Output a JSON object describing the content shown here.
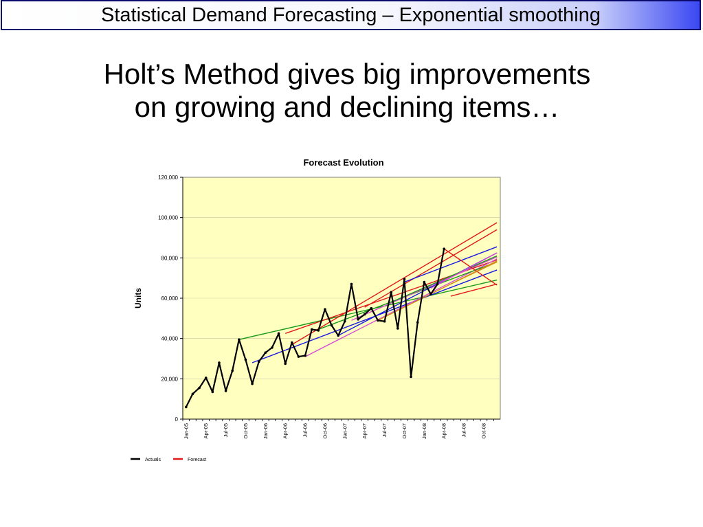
{
  "header": {
    "title": "Statistical Demand Forecasting – Exponential smoothing"
  },
  "headline": {
    "line1": "Holt’s Method gives big improvements",
    "line2": "on growing and declining items…"
  },
  "colors": {
    "plot_bg": "#ffffc0",
    "actuals": "#000000",
    "forecast_series": [
      "#e01a1a",
      "#1a1ae0",
      "#1a9a1a",
      "#d64ad6",
      "#d0901a"
    ]
  },
  "chart_data": {
    "type": "line",
    "title": "Forecast Evolution",
    "xlabel": "",
    "ylabel": "Units",
    "ylim": [
      0,
      120000
    ],
    "yticks": [
      "0",
      "20,000",
      "40,000",
      "60,000",
      "80,000",
      "100,000",
      "120,000"
    ],
    "x": [
      "Jan-05",
      "Feb-05",
      "Mar-05",
      "Apr-05",
      "May-05",
      "Jun-05",
      "Jul-05",
      "Aug-05",
      "Sep-05",
      "Oct-05",
      "Nov-05",
      "Dec-05",
      "Jan-06",
      "Feb-06",
      "Mar-06",
      "Apr-06",
      "May-06",
      "Jun-06",
      "Jul-06",
      "Aug-06",
      "Sep-06",
      "Oct-06",
      "Nov-06",
      "Dec-06",
      "Jan-07",
      "Feb-07",
      "Mar-07",
      "Apr-07",
      "May-07",
      "Jun-07",
      "Jul-07",
      "Aug-07",
      "Sep-07",
      "Oct-07",
      "Nov-07",
      "Dec-07",
      "Jan-08",
      "Feb-08",
      "Mar-08",
      "Apr-08",
      "May-08",
      "Jun-08",
      "Jul-08",
      "Aug-08",
      "Sep-08",
      "Oct-08",
      "Nov-08",
      "Dec-08"
    ],
    "xtick_labels": [
      "Jan-05",
      "Apr-05",
      "Jul-05",
      "Oct-05",
      "Jan-06",
      "Apr-06",
      "Jul-06",
      "Oct-06",
      "Jan-07",
      "Apr-07",
      "Jul-07",
      "Oct-07",
      "Jan-08",
      "Apr-08",
      "Jul-08",
      "Oct-08"
    ],
    "legend": {
      "entries": [
        "Actuals",
        "Forecast"
      ],
      "placement": "bottom-left"
    },
    "actuals": {
      "name": "Actuals",
      "values": [
        6000,
        12500,
        15500,
        20500,
        13500,
        28000,
        14000,
        24000,
        39500,
        29500,
        17500,
        28500,
        33000,
        35500,
        42500,
        27500,
        38000,
        31000,
        31500,
        44500,
        44000,
        54500,
        46500,
        41500,
        48500,
        67000,
        49500,
        52000,
        55000,
        49000,
        48500,
        63000,
        45000,
        69500,
        21000,
        48000,
        68000,
        62000,
        67000,
        84500,
        null,
        null,
        null,
        null,
        null,
        null,
        null,
        null
      ]
    },
    "forecasts": [
      {
        "start": "Sep-05",
        "end": "Dec-08",
        "values": [
          39500,
          69000
        ],
        "color_index": 2
      },
      {
        "start": "Nov-05",
        "end": "Dec-08",
        "values": [
          28000,
          74000
        ],
        "color_index": 1
      },
      {
        "start": "Apr-06",
        "end": "Dec-08",
        "values": [
          42500,
          79000
        ],
        "color_index": 0
      },
      {
        "start": "May-06",
        "end": "Dec-08",
        "values": [
          37000,
          97500
        ],
        "color_index": 0
      },
      {
        "start": "Jul-06",
        "end": "Dec-08",
        "values": [
          31000,
          79500
        ],
        "color_index": 3
      },
      {
        "start": "Sep-06",
        "end": "Dec-08",
        "values": [
          44500,
          78000
        ],
        "color_index": 2
      },
      {
        "start": "Dec-06",
        "end": "Dec-08",
        "values": [
          41500,
          82500
        ],
        "color_index": 1
      },
      {
        "start": "Feb-07",
        "end": "Dec-08",
        "values": [
          49000,
          80500
        ],
        "color_index": 3
      },
      {
        "start": "Apr-07",
        "end": "Dec-08",
        "values": [
          55500,
          94000
        ],
        "color_index": 0
      },
      {
        "start": "Jun-07",
        "end": "Dec-08",
        "values": [
          49000,
          78500
        ],
        "color_index": 4
      },
      {
        "start": "Aug-07",
        "end": "Dec-08",
        "values": [
          58000,
          81000
        ],
        "color_index": 2
      },
      {
        "start": "Oct-07",
        "end": "Dec-08",
        "values": [
          68000,
          85500
        ],
        "color_index": 1
      },
      {
        "start": "Feb-08",
        "end": "Dec-08",
        "values": [
          65000,
          82500
        ],
        "color_index": 3
      },
      {
        "start": "Apr-08",
        "end": "Dec-08",
        "values": [
          84500,
          66500
        ],
        "color_index": 0
      },
      {
        "start": "May-08",
        "end": "Dec-08",
        "values": [
          61000,
          67000
        ],
        "color_index": 0
      },
      {
        "start": "May-08",
        "end": "Dec-08",
        "values": [
          67000,
          78000
        ],
        "color_index": 4
      }
    ]
  }
}
